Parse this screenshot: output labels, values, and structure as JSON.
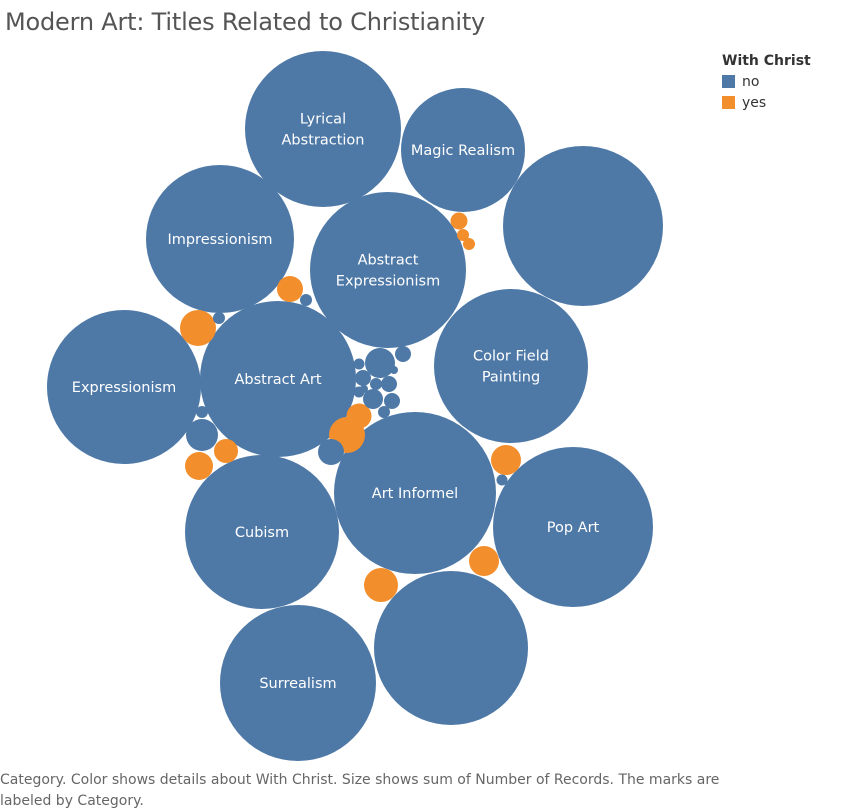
{
  "title": "Modern Art: Titles Related to Christianity",
  "legend": {
    "title": "With Christ",
    "items": [
      {
        "label": "no",
        "color": "#4e79a7"
      },
      {
        "label": "yes",
        "color": "#f28e2b"
      }
    ]
  },
  "caption": "Category.  Color shows details about With Christ.  Size shows sum of Number of Records.  The marks are labeled by Category.",
  "chart_data": {
    "type": "packed-bubble",
    "size_measure": "sum of Number of Records",
    "color_measure": "With Christ",
    "colors": {
      "no": "#4e79a7",
      "yes": "#f28e2b"
    },
    "bubbles": [
      {
        "category": "Lyrical Abstraction",
        "with_christ": "no",
        "size": 100
      },
      {
        "category": "Magic Realism",
        "with_christ": "no",
        "size": 65
      },
      {
        "category": "",
        "with_christ": "no",
        "size": 105
      },
      {
        "category": "Impressionism",
        "with_christ": "no",
        "size": 90
      },
      {
        "category": "Abstract Expressionism",
        "with_christ": "no",
        "size": 100
      },
      {
        "category": "Color Field Painting",
        "with_christ": "no",
        "size": 98
      },
      {
        "category": "Expressionism",
        "with_christ": "no",
        "size": 95
      },
      {
        "category": "Abstract Art",
        "with_christ": "no",
        "size": 98
      },
      {
        "category": "Art Informel",
        "with_christ": "no",
        "size": 108
      },
      {
        "category": "Pop Art",
        "with_christ": "no",
        "size": 106
      },
      {
        "category": "Cubism",
        "with_christ": "no",
        "size": 95
      },
      {
        "category": "Surrealism",
        "with_christ": "no",
        "size": 100
      },
      {
        "category": "",
        "with_christ": "no",
        "size": 98
      },
      {
        "category": "",
        "with_christ": "yes",
        "size": 4.3
      },
      {
        "category": "",
        "with_christ": "yes",
        "size": 3.3
      },
      {
        "category": "",
        "with_christ": "yes",
        "size": 2.7
      },
      {
        "category": "",
        "with_christ": "yes",
        "size": 2.8
      },
      {
        "category": "",
        "with_christ": "yes",
        "size": 2.0
      },
      {
        "category": "",
        "with_christ": "yes",
        "size": 3.3
      },
      {
        "category": "",
        "with_christ": "yes",
        "size": 3.3
      },
      {
        "category": "",
        "with_christ": "yes",
        "size": 3.3
      },
      {
        "category": "",
        "with_christ": "yes",
        "size": 3.3
      },
      {
        "category": "",
        "with_christ": "yes",
        "size": 0.9
      },
      {
        "category": "",
        "with_christ": "yes",
        "size": 1.1
      },
      {
        "category": "",
        "with_christ": "yes",
        "size": 0.9
      },
      {
        "category": "",
        "with_christ": "no",
        "size": 3.3
      },
      {
        "category": "",
        "with_christ": "no",
        "size": 2.5
      },
      {
        "category": "",
        "with_christ": "no",
        "size": 2.1
      },
      {
        "category": "",
        "with_christ": "no",
        "size": 1.3
      },
      {
        "category": "",
        "with_christ": "no",
        "size": 1.1
      },
      {
        "category": "",
        "with_christ": "no",
        "size": 1.0
      },
      {
        "category": "",
        "with_christ": "no",
        "size": 1.0
      },
      {
        "category": "",
        "with_christ": "no",
        "size": 1.0
      },
      {
        "category": "",
        "with_christ": "no",
        "size": 0.6
      },
      {
        "category": "",
        "with_christ": "no",
        "size": 0.6
      },
      {
        "category": "",
        "with_christ": "no",
        "size": 0.6
      },
      {
        "category": "",
        "with_christ": "no",
        "size": 0.6
      },
      {
        "category": "",
        "with_christ": "no",
        "size": 0.6
      },
      {
        "category": "",
        "with_christ": "no",
        "size": 0.5
      },
      {
        "category": "",
        "with_christ": "no",
        "size": 0.5
      },
      {
        "category": "",
        "with_christ": "no",
        "size": 0.5
      },
      {
        "category": "",
        "with_christ": "no",
        "size": 0.5
      },
      {
        "category": "",
        "with_christ": "no",
        "size": 0.5
      }
    ]
  }
}
